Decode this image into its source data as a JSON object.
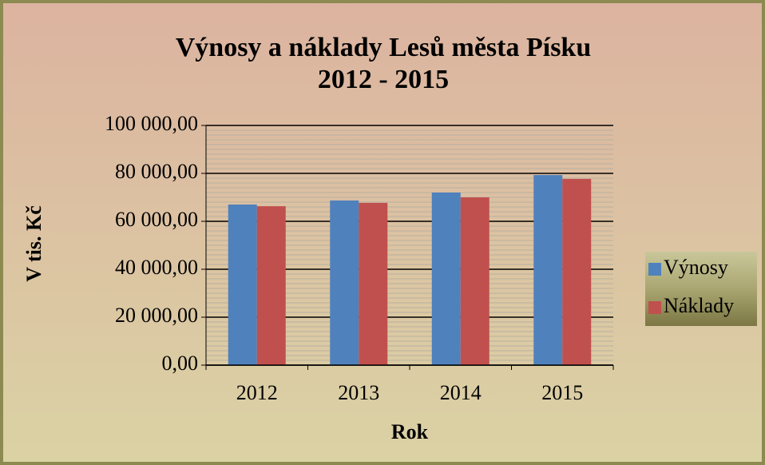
{
  "chart_data": {
    "type": "bar",
    "title": [
      "Výnosy a náklady Lesů města Písku",
      "2012 - 2015"
    ],
    "x_label": "Rok",
    "y_label": "V tis. Kč",
    "categories": [
      "2012",
      "2013",
      "2014",
      "2015"
    ],
    "series": [
      {
        "name": "Výnosy",
        "color": "#4f81bd",
        "values": [
          67000,
          68700,
          72000,
          79300
        ]
      },
      {
        "name": "Náklady",
        "color": "#c0504d",
        "values": [
          66300,
          67700,
          70000,
          77700
        ]
      }
    ],
    "ylim": [
      0,
      100000
    ],
    "yticks": [
      {
        "value": 0,
        "label": "0,00"
      },
      {
        "value": 20000,
        "label": "20 000,00"
      },
      {
        "value": 40000,
        "label": "40 000,00"
      },
      {
        "value": 60000,
        "label": "60 000,00"
      },
      {
        "value": 80000,
        "label": "80 000,00"
      },
      {
        "value": 100000,
        "label": "100 000,00"
      }
    ],
    "grid": true,
    "minor_grid_step": 2000,
    "legend": "right"
  }
}
